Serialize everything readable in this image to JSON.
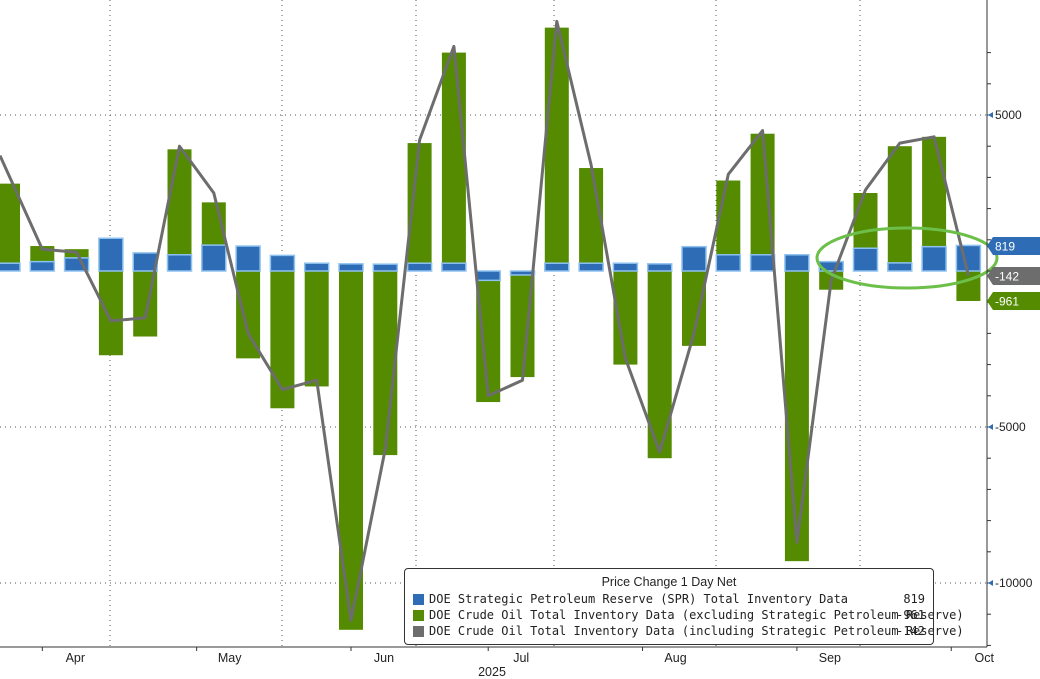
{
  "chart_data": {
    "type": "bar",
    "title": "Price Change 1 Day Net",
    "ylim": [
      -12200,
      7900
    ],
    "yticks": [
      5000,
      -5000,
      -10000
    ],
    "ytick_labels": [
      "5000",
      "-5000",
      "-10000"
    ],
    "xlabels": [
      {
        "label": "Apr",
        "week": 1
      },
      {
        "label": "May",
        "week": 5.5
      },
      {
        "label": "Jun",
        "week": 10
      },
      {
        "label": "Jul",
        "week": 14
      },
      {
        "label": "Aug",
        "week": 18.5
      },
      {
        "label": "Sep",
        "week": 23
      },
      {
        "label": "Oct",
        "week": 27.5
      }
    ],
    "year_label": "2025",
    "series": [
      {
        "name": "DOE Strategic Petroleum Reserve (SPR) Total Inventory Data",
        "color": "#2e6db6",
        "values": [
          250,
          300,
          420,
          1050,
          580,
          520,
          830,
          800,
          500,
          250,
          230,
          220,
          250,
          250,
          -300,
          -100,
          250,
          250,
          250,
          230,
          780,
          520,
          520,
          520,
          300,
          730,
          260,
          780,
          819
        ]
      },
      {
        "name": "DOE Crude Oil Total Inventory Data (excluding Strategic Petroleum Reserve)",
        "color": "#548b01",
        "values": [
          2800,
          800,
          700,
          -2700,
          -2100,
          3900,
          2200,
          -2800,
          -4400,
          -3700,
          -11500,
          -5900,
          4100,
          7000,
          -4200,
          -3400,
          7800,
          3300,
          -3000,
          -6000,
          -2400,
          2900,
          4400,
          -9300,
          -600,
          2500,
          4000,
          4300,
          -961
        ]
      },
      {
        "name": "DOE Crude Oil Total Inventory Data (including Strategic Petroleum Reserve)",
        "color": "#6d6d6d",
        "values": [
          3700,
          700,
          600,
          -1600,
          -1500,
          4000,
          2500,
          -2000,
          -3800,
          -3500,
          -11200,
          -5700,
          4200,
          7200,
          -4000,
          -3500,
          8000,
          3400,
          -2800,
          -5800,
          -2000,
          3100,
          4500,
          -8700,
          -300,
          2600,
          4100,
          4300,
          -142
        ]
      }
    ],
    "last_value_tags": [
      {
        "label": "819",
        "value": 819,
        "color": "#2e6db6"
      },
      {
        "label": "-142",
        "value": -142,
        "color": "#6d6d6d"
      },
      {
        "label": "-961",
        "value": -961,
        "color": "#548b01"
      }
    ]
  },
  "legend": {
    "title": "Price Change 1 Day Net",
    "items": [
      {
        "label": "DOE Strategic Petroleum Reserve (SPR) Total Inventory Data",
        "value": "819",
        "color": "#2e6db6"
      },
      {
        "label": "DOE Crude Oil Total Inventory Data (excluding Strategic Petroleum Reserve)",
        "value": "-961",
        "color": "#548b01"
      },
      {
        "label": "DOE Crude Oil Total Inventory Data (including Strategic Petroleum Reserve)",
        "value": "-142",
        "color": "#6d6d6d"
      }
    ]
  }
}
